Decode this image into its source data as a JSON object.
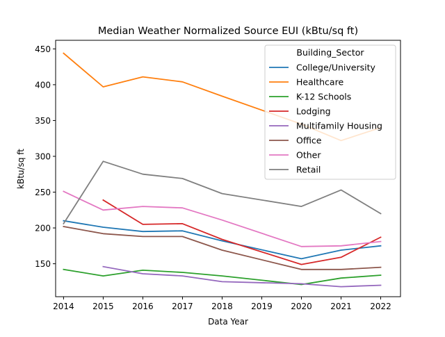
{
  "chart_data": {
    "type": "line",
    "title": "Median Weather Normalized Source EUI (kBtu/sq ft)",
    "xlabel": "Data Year",
    "ylabel": "kBtu/sq ft",
    "xlim": [
      2013.8,
      2022.5
    ],
    "ylim": [
      104,
      462
    ],
    "xticks": [
      2014,
      2015,
      2016,
      2017,
      2018,
      2019,
      2020,
      2021,
      2022
    ],
    "yticks": [
      150,
      200,
      250,
      300,
      350,
      400,
      450
    ],
    "grid": false,
    "legend": {
      "title": "Building_Sector",
      "position": "top-right"
    },
    "series": [
      {
        "name": "College/University",
        "color": "#1f77b4",
        "x": [
          2014,
          2015,
          2016,
          2017,
          2018,
          2020,
          2021,
          2022
        ],
        "y": [
          210,
          201,
          195,
          196,
          182,
          157,
          169,
          175
        ]
      },
      {
        "name": "Healthcare",
        "color": "#ff7f0e",
        "x": [
          2014,
          2015,
          2016,
          2017,
          2018,
          2020,
          2021,
          2022
        ],
        "y": [
          444,
          397,
          411,
          404,
          384,
          345,
          322,
          340
        ]
      },
      {
        "name": "K-12 Schools",
        "color": "#2ca02c",
        "x": [
          2014,
          2015,
          2016,
          2017,
          2018,
          2020,
          2021,
          2022
        ],
        "y": [
          142,
          133,
          141,
          138,
          133,
          121,
          130,
          134
        ]
      },
      {
        "name": "Lodging",
        "color": "#d62728",
        "x": [
          2015,
          2016,
          2017,
          2018,
          2020,
          2021,
          2022
        ],
        "y": [
          239,
          205,
          206,
          184,
          149,
          159,
          187
        ]
      },
      {
        "name": "Multifamily Housing",
        "color": "#9467bd",
        "x": [
          2015,
          2016,
          2017,
          2018,
          2020,
          2021,
          2022
        ],
        "y": [
          146,
          136,
          133,
          125,
          122,
          118,
          120
        ]
      },
      {
        "name": "Office",
        "color": "#8c564b",
        "x": [
          2014,
          2015,
          2016,
          2017,
          2018,
          2020,
          2021,
          2022
        ],
        "y": [
          202,
          192,
          188,
          188,
          169,
          142,
          142,
          145
        ]
      },
      {
        "name": "Other",
        "color": "#e377c2",
        "x": [
          2014,
          2015,
          2016,
          2017,
          2018,
          2020,
          2021,
          2022
        ],
        "y": [
          251,
          225,
          230,
          228,
          211,
          174,
          175,
          181
        ]
      },
      {
        "name": "Retail",
        "color": "#7f7f7f",
        "x": [
          2014,
          2015,
          2016,
          2017,
          2018,
          2020,
          2021,
          2022
        ],
        "y": [
          206,
          293,
          275,
          269,
          248,
          230,
          253,
          220
        ]
      }
    ]
  }
}
